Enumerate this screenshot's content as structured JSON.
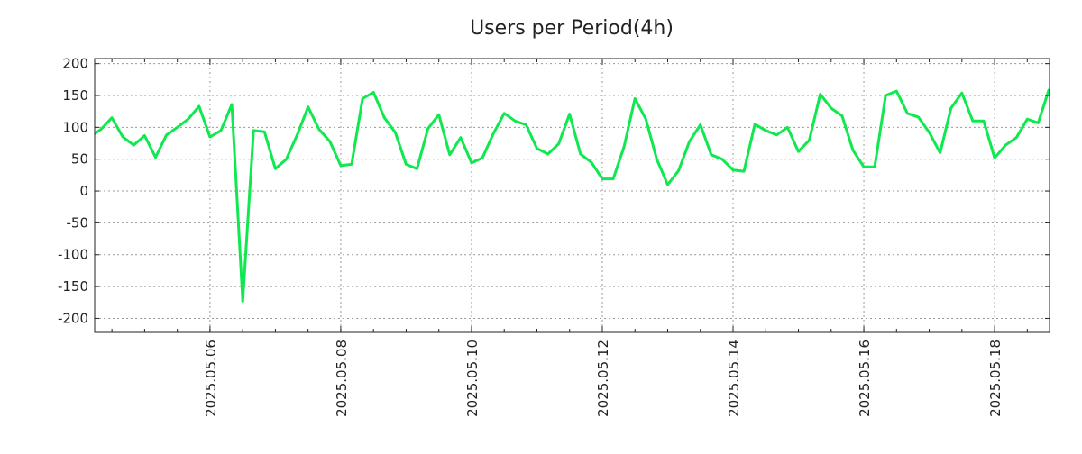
{
  "chart_data": {
    "type": "line",
    "title": "Users per Period(4h)",
    "xlabel": "",
    "ylabel": "",
    "x_start": "2025-05-04T04:00:00",
    "x_step_hours": 4,
    "xlim": [
      "2025-05-04T05:40:00",
      "2025-05-18T20:10:00"
    ],
    "ylim": [
      -222,
      208
    ],
    "yticks": [
      200,
      150,
      100,
      50,
      0,
      -50,
      -100,
      -150,
      -200
    ],
    "xtick_labels": [
      "2025.05.06",
      "2025.05.08",
      "2025.05.10",
      "2025.05.12",
      "2025.05.14",
      "2025.05.16",
      "2025.05.18"
    ],
    "xtick_dates": [
      "2025-05-06T00:00:00",
      "2025-05-08T00:00:00",
      "2025-05-10T00:00:00",
      "2025-05-12T00:00:00",
      "2025-05-14T00:00:00",
      "2025-05-16T00:00:00",
      "2025-05-18T00:00:00"
    ],
    "grid": true,
    "legend": "none",
    "series": [
      {
        "name": "Users",
        "color": "#10e850",
        "values": [
          85,
          97,
          115,
          85,
          72,
          87,
          53,
          88,
          100,
          113,
          133,
          85,
          95,
          136,
          -173,
          95,
          93,
          35,
          50,
          88,
          132,
          97,
          78,
          40,
          42,
          145,
          155,
          115,
          92,
          42,
          35,
          98,
          120,
          57,
          84,
          44,
          52,
          90,
          122,
          110,
          104,
          67,
          58,
          74,
          121,
          58,
          45,
          19,
          19,
          70,
          145,
          113,
          50,
          10,
          32,
          78,
          104,
          57,
          50,
          33,
          31,
          105,
          95,
          88,
          100,
          62,
          80,
          152,
          130,
          118,
          64,
          38,
          38,
          150,
          157,
          122,
          116,
          92,
          60,
          130,
          154,
          110,
          110,
          52,
          72,
          84,
          113,
          107,
          160
        ]
      }
    ]
  }
}
